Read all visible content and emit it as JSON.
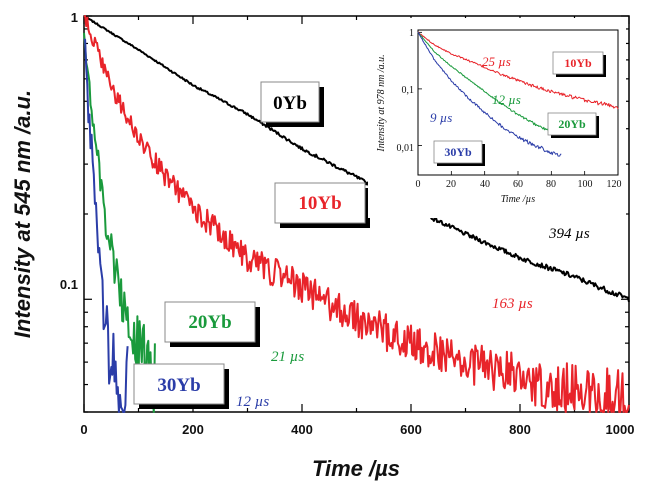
{
  "chart_data": [
    {
      "type": "line",
      "xlabel": "Time /µs",
      "ylabel": "Intensity at 545 nm /a.u.",
      "xlim": [
        0,
        1000
      ],
      "ylim": [
        0.04,
        1
      ],
      "yscale": "log",
      "x_ticks": [
        "0",
        "200",
        "400",
        "600",
        "800",
        "1000"
      ],
      "y_ticks": [
        "0.1",
        "1"
      ],
      "grid": false,
      "series": [
        {
          "name": "0Yb",
          "color": "#000000",
          "lifetime": "394 µs",
          "x": [
            0,
            100,
            200,
            300,
            400,
            500,
            600,
            700,
            800,
            900,
            1000
          ],
          "y": [
            1.0,
            0.76,
            0.57,
            0.45,
            0.34,
            0.27,
            0.21,
            0.17,
            0.14,
            0.12,
            0.1
          ]
        },
        {
          "name": "10Yb",
          "color": "#e8242a",
          "lifetime": "163 µs",
          "x": [
            0,
            25,
            50,
            100,
            150,
            200,
            300,
            400,
            500,
            600,
            700,
            800,
            900,
            1000
          ],
          "y": [
            1.0,
            0.75,
            0.56,
            0.37,
            0.27,
            0.21,
            0.14,
            0.11,
            0.085,
            0.07,
            0.06,
            0.053,
            0.048,
            0.044
          ]
        },
        {
          "name": "20Yb",
          "color": "#1a9a3c",
          "lifetime": "21 µs",
          "x": [
            0,
            10,
            20,
            30,
            40,
            60,
            80,
            100,
            120,
            130
          ],
          "y": [
            0.9,
            0.55,
            0.37,
            0.26,
            0.19,
            0.12,
            0.085,
            0.066,
            0.056,
            0.052
          ]
        },
        {
          "name": "30Yb",
          "color": "#2b3da8",
          "lifetime": "12 µs",
          "x": [
            0,
            5,
            10,
            20,
            30,
            40,
            50,
            60,
            70,
            80
          ],
          "y": [
            0.9,
            0.6,
            0.42,
            0.22,
            0.13,
            0.085,
            0.063,
            0.052,
            0.046,
            0.042
          ]
        }
      ]
    },
    {
      "type": "line",
      "xlabel": "Time /µs",
      "ylabel": "Intensity at 978 nm /a.u.",
      "xlim": [
        0,
        120
      ],
      "ylim": [
        0.003,
        1.1
      ],
      "yscale": "log",
      "x_ticks": [
        "0",
        "20",
        "40",
        "60",
        "80",
        "100",
        "120"
      ],
      "y_ticks": [
        "0,01",
        "0,1",
        "1"
      ],
      "series": [
        {
          "name": "10Yb",
          "color": "#e8242a",
          "lifetime": "25 µs",
          "x": [
            0,
            10,
            20,
            30,
            40,
            50,
            60,
            70,
            80,
            90,
            100,
            110,
            120
          ],
          "y": [
            1.0,
            0.6,
            0.42,
            0.32,
            0.24,
            0.18,
            0.14,
            0.11,
            0.09,
            0.075,
            0.063,
            0.055,
            0.048
          ]
        },
        {
          "name": "20Yb",
          "color": "#1a9a3c",
          "lifetime": "12 µs",
          "x": [
            0,
            10,
            20,
            30,
            40,
            50,
            60,
            70,
            80,
            86
          ],
          "y": [
            1.0,
            0.45,
            0.25,
            0.15,
            0.09,
            0.055,
            0.035,
            0.024,
            0.017,
            0.015
          ]
        },
        {
          "name": "30Yb",
          "color": "#2b3da8",
          "lifetime": "9 µs",
          "x": [
            0,
            10,
            20,
            30,
            40,
            50,
            60,
            70,
            80,
            86
          ],
          "y": [
            1.0,
            0.32,
            0.14,
            0.07,
            0.038,
            0.022,
            0.014,
            0.01,
            0.0075,
            0.0065
          ]
        }
      ]
    }
  ]
}
